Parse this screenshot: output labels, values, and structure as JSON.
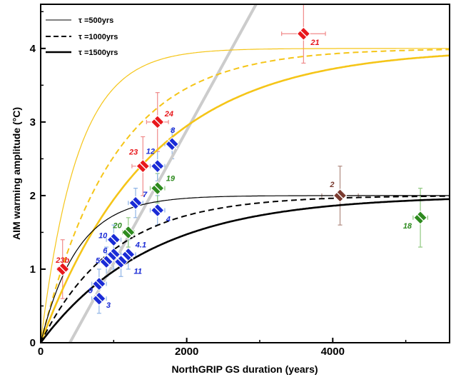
{
  "chart_data": {
    "type": "scatter",
    "title": "",
    "xlabel": "NorthGRIP GS duration (years)",
    "ylabel": "AIM warming amplitude (°C)",
    "xlim": [
      0,
      5600
    ],
    "ylim": [
      0,
      4.6
    ],
    "x_ticks": [
      "0",
      "2000",
      "4000"
    ],
    "y_ticks": [
      "0",
      "1",
      "2",
      "3",
      "4"
    ],
    "grid": false,
    "legend_position": "top-left",
    "legend": [
      {
        "label": "τ =500yrs",
        "style": "solid-thin"
      },
      {
        "label": "τ =1000yrs",
        "style": "dashed"
      },
      {
        "label": "τ =1500yrs",
        "style": "solid-thick"
      }
    ],
    "curves": [
      {
        "amplitude": 4,
        "tau": 500,
        "style": "solid-thin",
        "color": "#f5c518"
      },
      {
        "amplitude": 4,
        "tau": 1000,
        "style": "dashed",
        "color": "#f5c518"
      },
      {
        "amplitude": 4,
        "tau": 1500,
        "style": "solid-thick",
        "color": "#f5c518"
      },
      {
        "amplitude": 2,
        "tau": 500,
        "style": "solid-thin",
        "color": "#000000"
      },
      {
        "amplitude": 2,
        "tau": 1000,
        "style": "dashed",
        "color": "#000000"
      },
      {
        "amplitude": 2,
        "tau": 1500,
        "style": "solid-thick",
        "color": "#000000"
      }
    ],
    "regression_line": {
      "x": [
        400,
        2950
      ],
      "y": [
        0,
        4.6
      ],
      "color": "#cccccc"
    },
    "colors": {
      "blue": "#1a2bd6",
      "red": "#e8181c",
      "green": "#2e8b1f",
      "brown": "#7a3b30"
    },
    "points": [
      {
        "label": "23b",
        "x": 300,
        "y": 1.0,
        "xerr": 70,
        "yerr": 0.4,
        "color": "red"
      },
      {
        "label": "3",
        "x": 800,
        "y": 0.6,
        "xerr": 100,
        "yerr": 0.2,
        "color": "blue"
      },
      {
        "label": "9",
        "x": 800,
        "y": 0.8,
        "xerr": 100,
        "yerr": 0.2,
        "color": "blue"
      },
      {
        "label": "5",
        "x": 900,
        "y": 1.1,
        "xerr": 100,
        "yerr": 0.2,
        "color": "blue"
      },
      {
        "label": "6",
        "x": 1000,
        "y": 1.2,
        "xerr": 100,
        "yerr": 0.2,
        "color": "blue"
      },
      {
        "label": "10",
        "x": 1000,
        "y": 1.4,
        "xerr": 100,
        "yerr": 0.2,
        "color": "blue"
      },
      {
        "label": "11",
        "x": 1100,
        "y": 1.1,
        "xerr": 100,
        "yerr": 0.2,
        "color": "blue"
      },
      {
        "label": "4.1",
        "x": 1200,
        "y": 1.2,
        "xerr": 100,
        "yerr": 0.2,
        "color": "blue"
      },
      {
        "label": "20",
        "x": 1200,
        "y": 1.5,
        "xerr": 80,
        "yerr": 0.2,
        "color": "green"
      },
      {
        "label": "7",
        "x": 1300,
        "y": 1.9,
        "xerr": 100,
        "yerr": 0.2,
        "color": "blue"
      },
      {
        "label": "4",
        "x": 1600,
        "y": 1.8,
        "xerr": 100,
        "yerr": 0.2,
        "color": "blue"
      },
      {
        "label": "19",
        "x": 1600,
        "y": 2.1,
        "xerr": 100,
        "yerr": 0.2,
        "color": "green"
      },
      {
        "label": "12",
        "x": 1600,
        "y": 2.4,
        "xerr": 100,
        "yerr": 0.2,
        "color": "blue"
      },
      {
        "label": "8",
        "x": 1800,
        "y": 2.7,
        "xerr": 100,
        "yerr": 0.2,
        "color": "blue"
      },
      {
        "label": "23",
        "x": 1400,
        "y": 2.4,
        "xerr": 150,
        "yerr": 0.4,
        "color": "red"
      },
      {
        "label": "24",
        "x": 1600,
        "y": 3.0,
        "xerr": 150,
        "yerr": 0.4,
        "color": "red"
      },
      {
        "label": "21",
        "x": 3600,
        "y": 4.2,
        "xerr": 300,
        "yerr": 0.4,
        "color": "red"
      },
      {
        "label": "2",
        "x": 4100,
        "y": 2.0,
        "xerr": 250,
        "yerr": 0.4,
        "color": "brown"
      },
      {
        "label": "18",
        "x": 5200,
        "y": 1.7,
        "xerr": 100,
        "yerr": 0.4,
        "color": "green"
      }
    ]
  }
}
